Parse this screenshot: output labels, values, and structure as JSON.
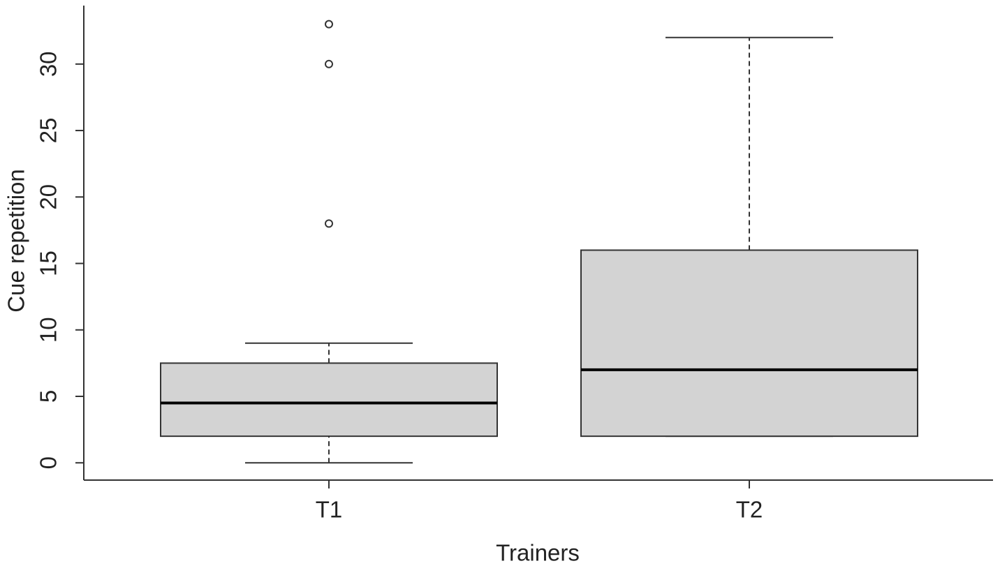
{
  "chart_data": {
    "type": "box",
    "x_label": "Trainers",
    "y_label": "Cue repetition",
    "categories": [
      "T1",
      "T2"
    ],
    "boxes": [
      {
        "min": 0,
        "q1": 2,
        "median": 4.5,
        "q3": 7.5,
        "max": 9,
        "outliers": [
          18,
          30,
          33
        ]
      },
      {
        "min": 2,
        "q1": 2,
        "median": 7,
        "q3": 16,
        "max": 32,
        "outliers": []
      }
    ],
    "color": "#d3d3d3",
    "ylim": [
      -1.3,
      34.4
    ],
    "yticks": [
      0,
      5,
      10,
      15,
      20,
      25,
      30
    ]
  }
}
